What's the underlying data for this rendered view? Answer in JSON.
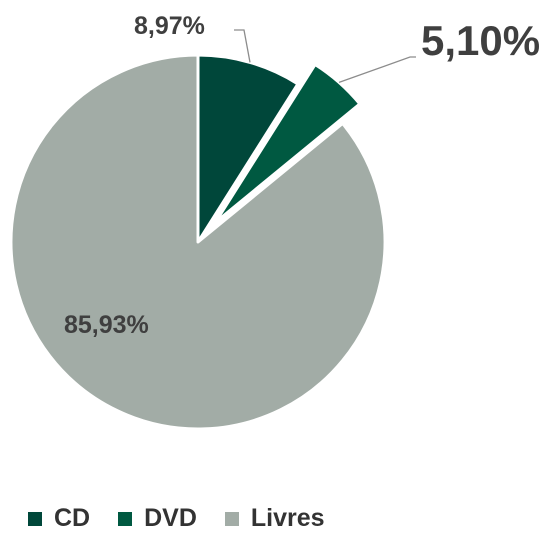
{
  "chart_data": {
    "type": "pie",
    "title": "",
    "series": [
      {
        "values": [
          {
            "label": "CD",
            "value": 8.97,
            "display": "8,97%",
            "color": "#00473a"
          },
          {
            "label": "DVD",
            "value": 5.1,
            "display": "5,10%",
            "color": "#005941",
            "exploded": true
          },
          {
            "label": "Livres",
            "value": 85.93,
            "display": "85,93%",
            "color": "#a2aca6"
          }
        ]
      }
    ],
    "legend": {
      "position": "bottom-left",
      "items": [
        "CD",
        "DVD",
        "Livres"
      ]
    },
    "start_angle": "12 o'clock",
    "direction": "clockwise"
  }
}
